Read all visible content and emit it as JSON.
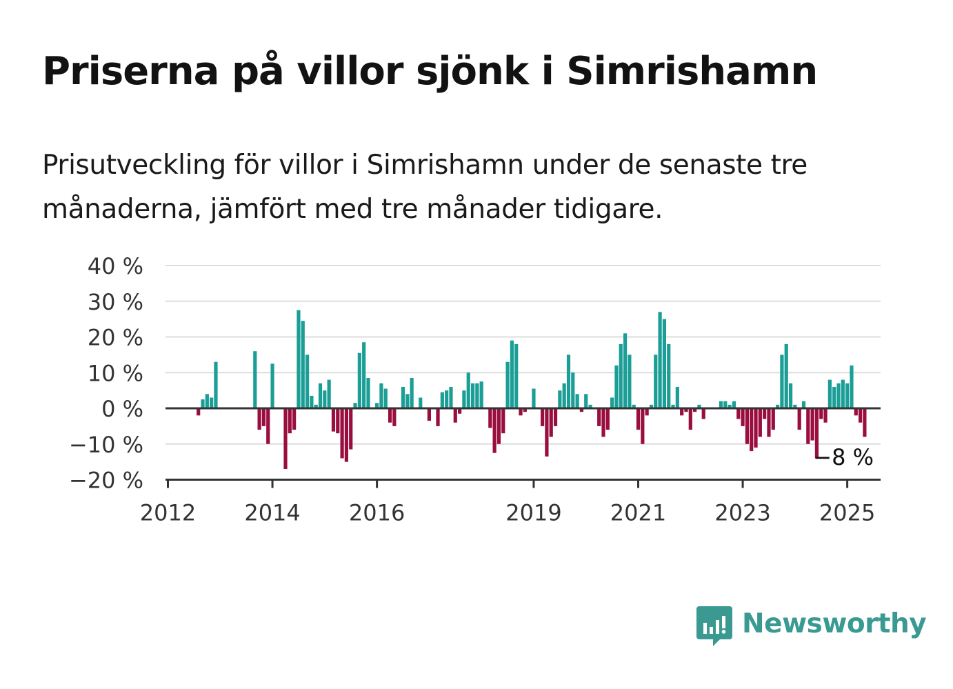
{
  "title": "Priserna på villor sjönk i Simrishamn",
  "subtitle": "Prisutveckling för villor i Simrishamn under de senaste tre månaderna, jämfört med tre månader tidigare.",
  "brand": {
    "name": "Newsworthy",
    "icon": "newsworthy-chart-bubble-icon",
    "color": "#3a9a92"
  },
  "colors": {
    "positive": "#1a9e96",
    "negative": "#990d3f",
    "grid": "#dddddd",
    "axis": "#333333",
    "text": "#333333"
  },
  "chart_data": {
    "type": "bar",
    "x_kind": "monthly",
    "first_month": "2012-01",
    "yticks": [
      40,
      30,
      20,
      10,
      0,
      -10,
      -20
    ],
    "ytick_labels": [
      "40 %",
      "30 %",
      "20 %",
      "10 %",
      "0 %",
      "−10 %",
      "−20 %"
    ],
    "ylim": [
      -20,
      40
    ],
    "xticks": [
      {
        "label": "2012",
        "month": "2012-01"
      },
      {
        "label": "2014",
        "month": "2014-01"
      },
      {
        "label": "2016",
        "month": "2016-01"
      },
      {
        "label": "2019",
        "month": "2019-01"
      },
      {
        "label": "2021",
        "month": "2021-01"
      },
      {
        "label": "2023",
        "month": "2023-01"
      },
      {
        "label": "2025",
        "month": "2025-01"
      }
    ],
    "end_label": "−8 %",
    "grid": true,
    "values": [
      null,
      null,
      null,
      null,
      null,
      null,
      null,
      -2,
      2.5,
      4,
      3,
      13,
      null,
      null,
      null,
      null,
      null,
      null,
      null,
      null,
      16,
      -6,
      -5,
      -10,
      12.5,
      null,
      null,
      -17,
      -7,
      -6,
      27.5,
      24.5,
      15,
      3.5,
      1,
      7,
      5,
      8,
      -6.5,
      -7,
      -14,
      -15,
      -11.5,
      1.5,
      15.5,
      18.5,
      8.5,
      null,
      1.5,
      7,
      5.5,
      -4,
      -5,
      null,
      6,
      4,
      8.5,
      null,
      3,
      null,
      -3.5,
      null,
      -5,
      4.5,
      5,
      6,
      -4,
      -1.5,
      5,
      10,
      7,
      7,
      7.5,
      null,
      -5.5,
      -12.5,
      -10,
      -7,
      13,
      19,
      18,
      -2,
      -1,
      null,
      5.5,
      null,
      -5,
      -13.5,
      -8,
      -5,
      5,
      7,
      15,
      10,
      4,
      -1,
      4,
      1,
      null,
      -5,
      -8,
      -6,
      3,
      12,
      18,
      21,
      15,
      1,
      -6,
      -10,
      -2,
      1,
      15,
      27,
      25,
      18,
      1,
      6,
      -2,
      -1,
      -6,
      -1,
      1,
      -3,
      null,
      null,
      null,
      2,
      2,
      1,
      2,
      -3,
      -5,
      -10,
      -12,
      -11,
      -8,
      -3,
      -8,
      -6,
      1,
      15,
      18,
      7,
      1,
      -6,
      2,
      -10,
      -9,
      -14,
      -3,
      -4,
      8,
      6,
      7,
      8,
      7,
      12,
      -2,
      -4,
      -8
    ]
  }
}
